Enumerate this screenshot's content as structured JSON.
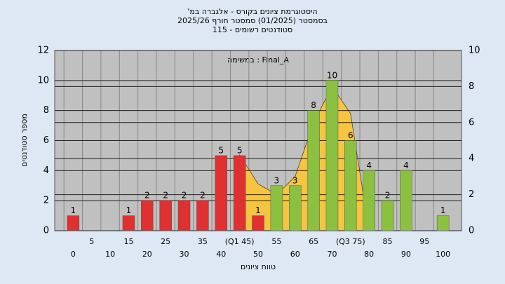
{
  "chart_data": {
    "type": "bar",
    "title_lines": [
      "היסטוגרמת ציונים בקורס - אלגברה במ'",
      "בסמסטר (01/2025) סמסטר חורף 2025/26",
      "סטודנטים רשומים - 115"
    ],
    "annotation": "במשימה : Final_A",
    "x_label": "טווח ציונים",
    "y_label": "מספר סטודנטים",
    "categories": [
      "0",
      "5",
      "10",
      "15",
      "20",
      "25",
      "30",
      "35",
      "40",
      "(Q1 45)",
      "50",
      "55",
      "60",
      "65",
      "70",
      "(Q3 75)",
      "80",
      "85",
      "90",
      "95",
      "100"
    ],
    "values": [
      1,
      0,
      0,
      1,
      2,
      2,
      2,
      2,
      5,
      5,
      1,
      3,
      3,
      8,
      10,
      6,
      4,
      2,
      4,
      0,
      1
    ],
    "bar_colors": [
      "#e03030",
      "#e03030",
      "#e03030",
      "#e03030",
      "#e03030",
      "#e03030",
      "#e03030",
      "#e03030",
      "#e03030",
      "#e03030",
      "#e03030",
      "#8cc040",
      "#8cc040",
      "#8cc040",
      "#8cc040",
      "#8cc040",
      "#8cc040",
      "#8cc040",
      "#8cc040",
      "#8cc040",
      "#8cc040"
    ],
    "curve": {
      "color": "#f5c542",
      "axis": "y2",
      "values": [
        null,
        null,
        null,
        null,
        null,
        null,
        null,
        null,
        null,
        4.2,
        2.6,
        2.0,
        3.0,
        6.0,
        8.0,
        6.5,
        0,
        null,
        null,
        null,
        null
      ]
    },
    "ylim": [
      0,
      12
    ],
    "yticks": [
      0,
      2,
      4,
      6,
      8,
      10,
      12
    ],
    "y2lim": [
      0,
      10
    ],
    "y2ticks": [
      0,
      2,
      4,
      6,
      8,
      10
    ],
    "grid": true
  }
}
